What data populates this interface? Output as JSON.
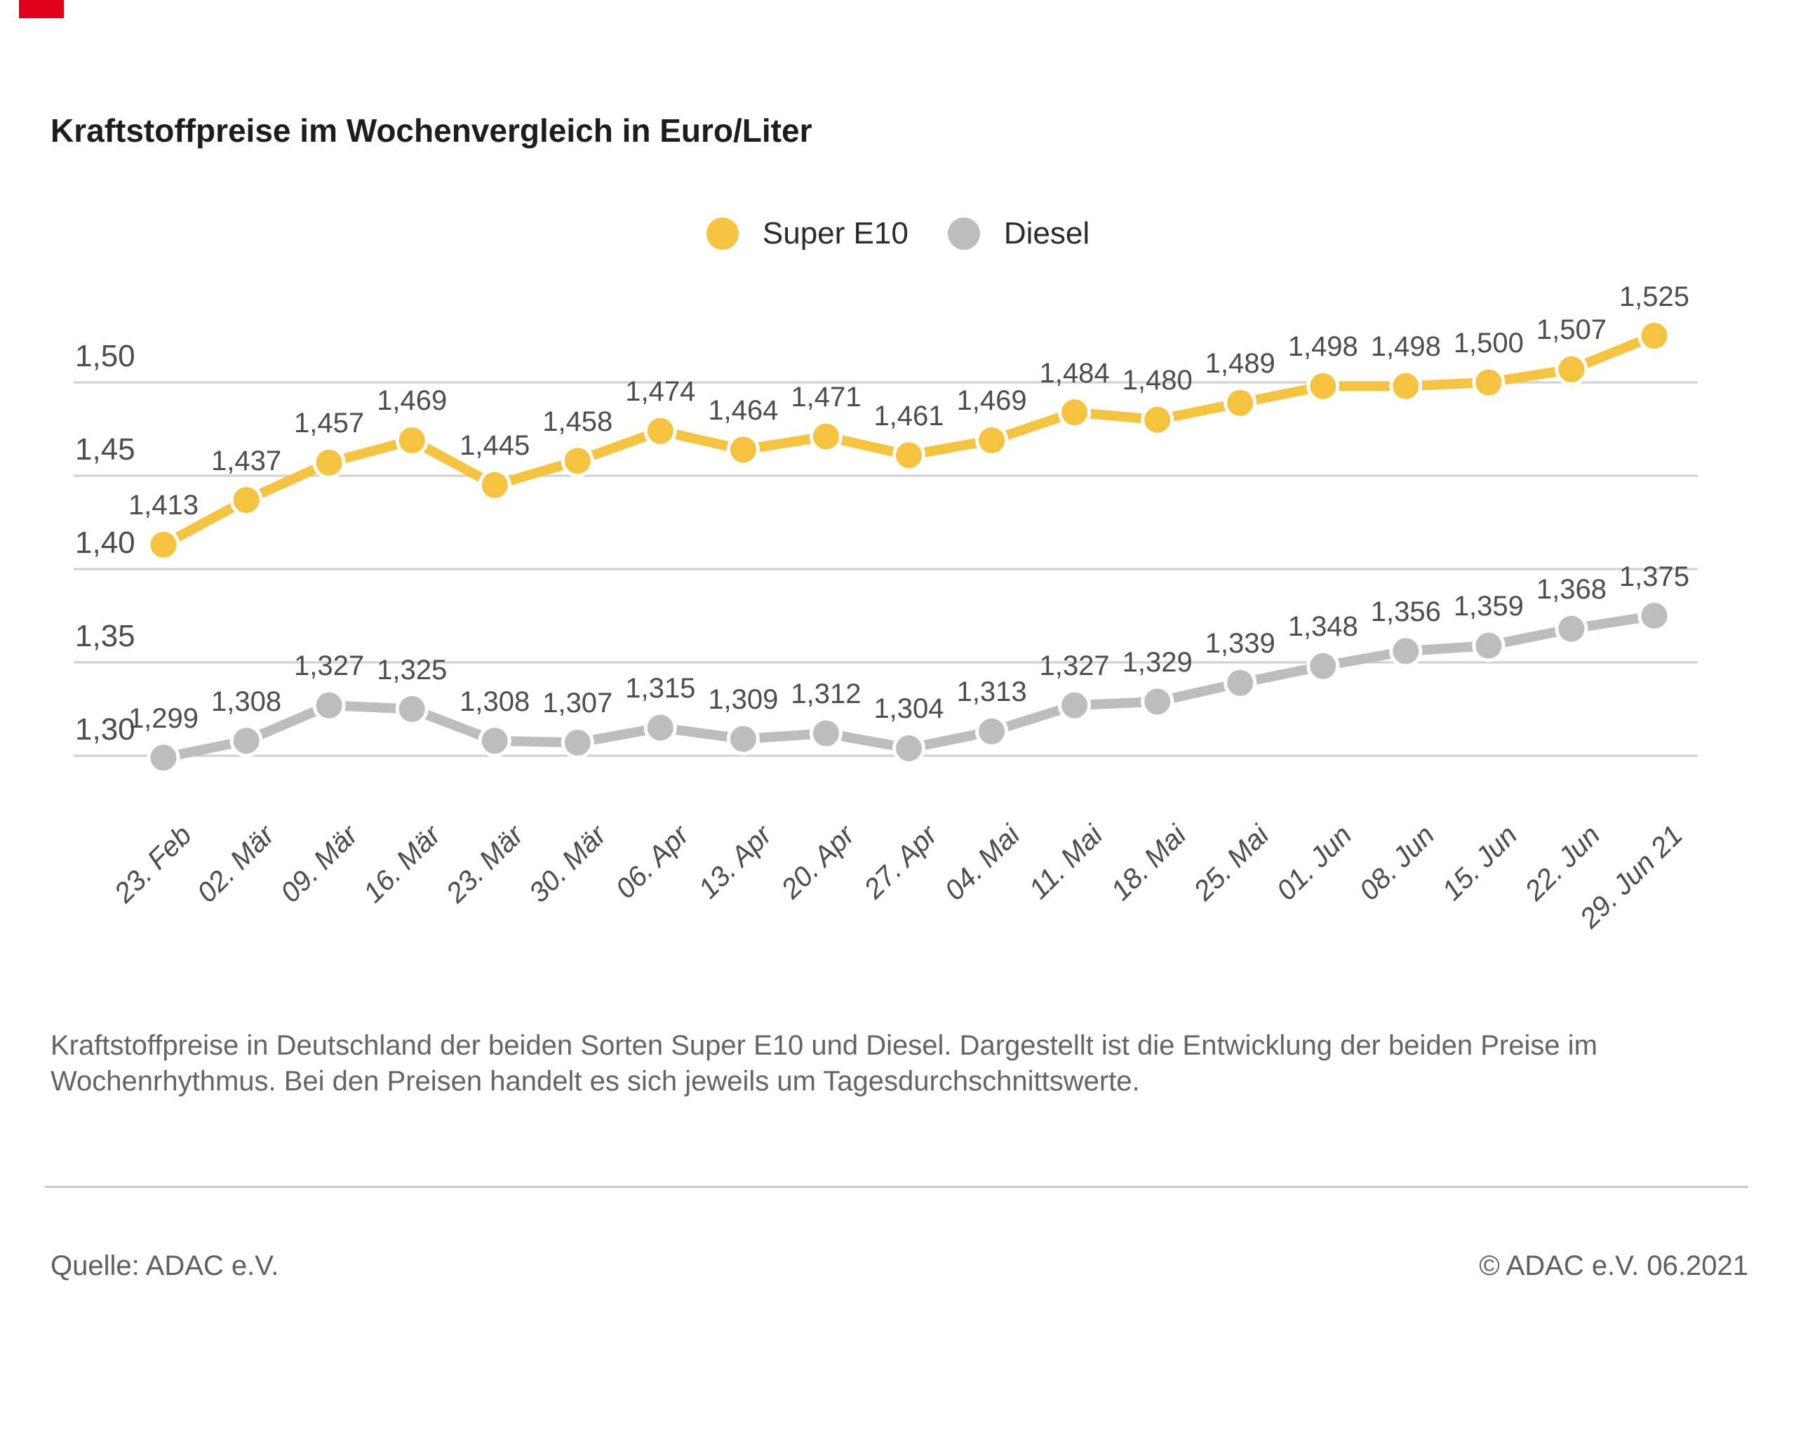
{
  "page": {
    "title": "Kraftstoffpreise im Wochenvergleich in Euro/Liter",
    "caption_line1": "Kraftstoffpreise in Deutschland der beiden Sorten Super E10 und Diesel. Dargestellt ist die Entwicklung der beiden Preise im",
    "caption_line2": "Wochenrhythmus. Bei den Preisen handelt es sich jeweils um Tagesdurchschnittswerte.",
    "source": "Quelle: ADAC e.V.",
    "copyright": "© ADAC e.V. 06.2021"
  },
  "legend": {
    "items": [
      {
        "label": "Super E10",
        "color": "#f6c340"
      },
      {
        "label": "Diesel",
        "color": "#bdbdbd"
      }
    ]
  },
  "colors": {
    "super_e10": "#f6c340",
    "diesel": "#bdbdbd",
    "grid": "#cfcfcf",
    "label_text": "#4d4d4d",
    "marker": "#e2001a"
  },
  "chart_data": {
    "type": "line",
    "title": "Kraftstoffpreise im Wochenvergleich in Euro/Liter",
    "xlabel": "",
    "ylabel": "Euro/Liter",
    "ylim": [
      1.28,
      1.53
    ],
    "grid": true,
    "legend_position": "top-center",
    "decimal_separator": ",",
    "categories": [
      "23. Feb",
      "02. Mär",
      "09. Mär",
      "16. Mär",
      "23. Mär",
      "30. Mär",
      "06. Apr",
      "13. Apr",
      "20. Apr",
      "27. Apr",
      "04. Mai",
      "11. Mai",
      "18. Mai",
      "25. Mai",
      "01. Jun",
      "08. Jun",
      "15. Jun",
      "22. Jun",
      "29. Jun 21"
    ],
    "yticks": [
      {
        "label": "1,50",
        "value": 1.5
      },
      {
        "label": "1,45",
        "value": 1.45
      },
      {
        "label": "1,40",
        "value": 1.4
      },
      {
        "label": "1,35",
        "value": 1.35
      },
      {
        "label": "1,30",
        "value": 1.3
      }
    ],
    "series": [
      {
        "name": "Super E10",
        "color": "#f6c340",
        "values": [
          1.413,
          1.437,
          1.457,
          1.469,
          1.445,
          1.458,
          1.474,
          1.464,
          1.471,
          1.461,
          1.469,
          1.484,
          1.48,
          1.489,
          1.498,
          1.498,
          1.5,
          1.507,
          1.525
        ]
      },
      {
        "name": "Diesel",
        "color": "#bdbdbd",
        "values": [
          1.299,
          1.308,
          1.327,
          1.325,
          1.308,
          1.307,
          1.315,
          1.309,
          1.312,
          1.304,
          1.313,
          1.327,
          1.329,
          1.339,
          1.348,
          1.356,
          1.359,
          1.368,
          1.375
        ]
      }
    ]
  }
}
